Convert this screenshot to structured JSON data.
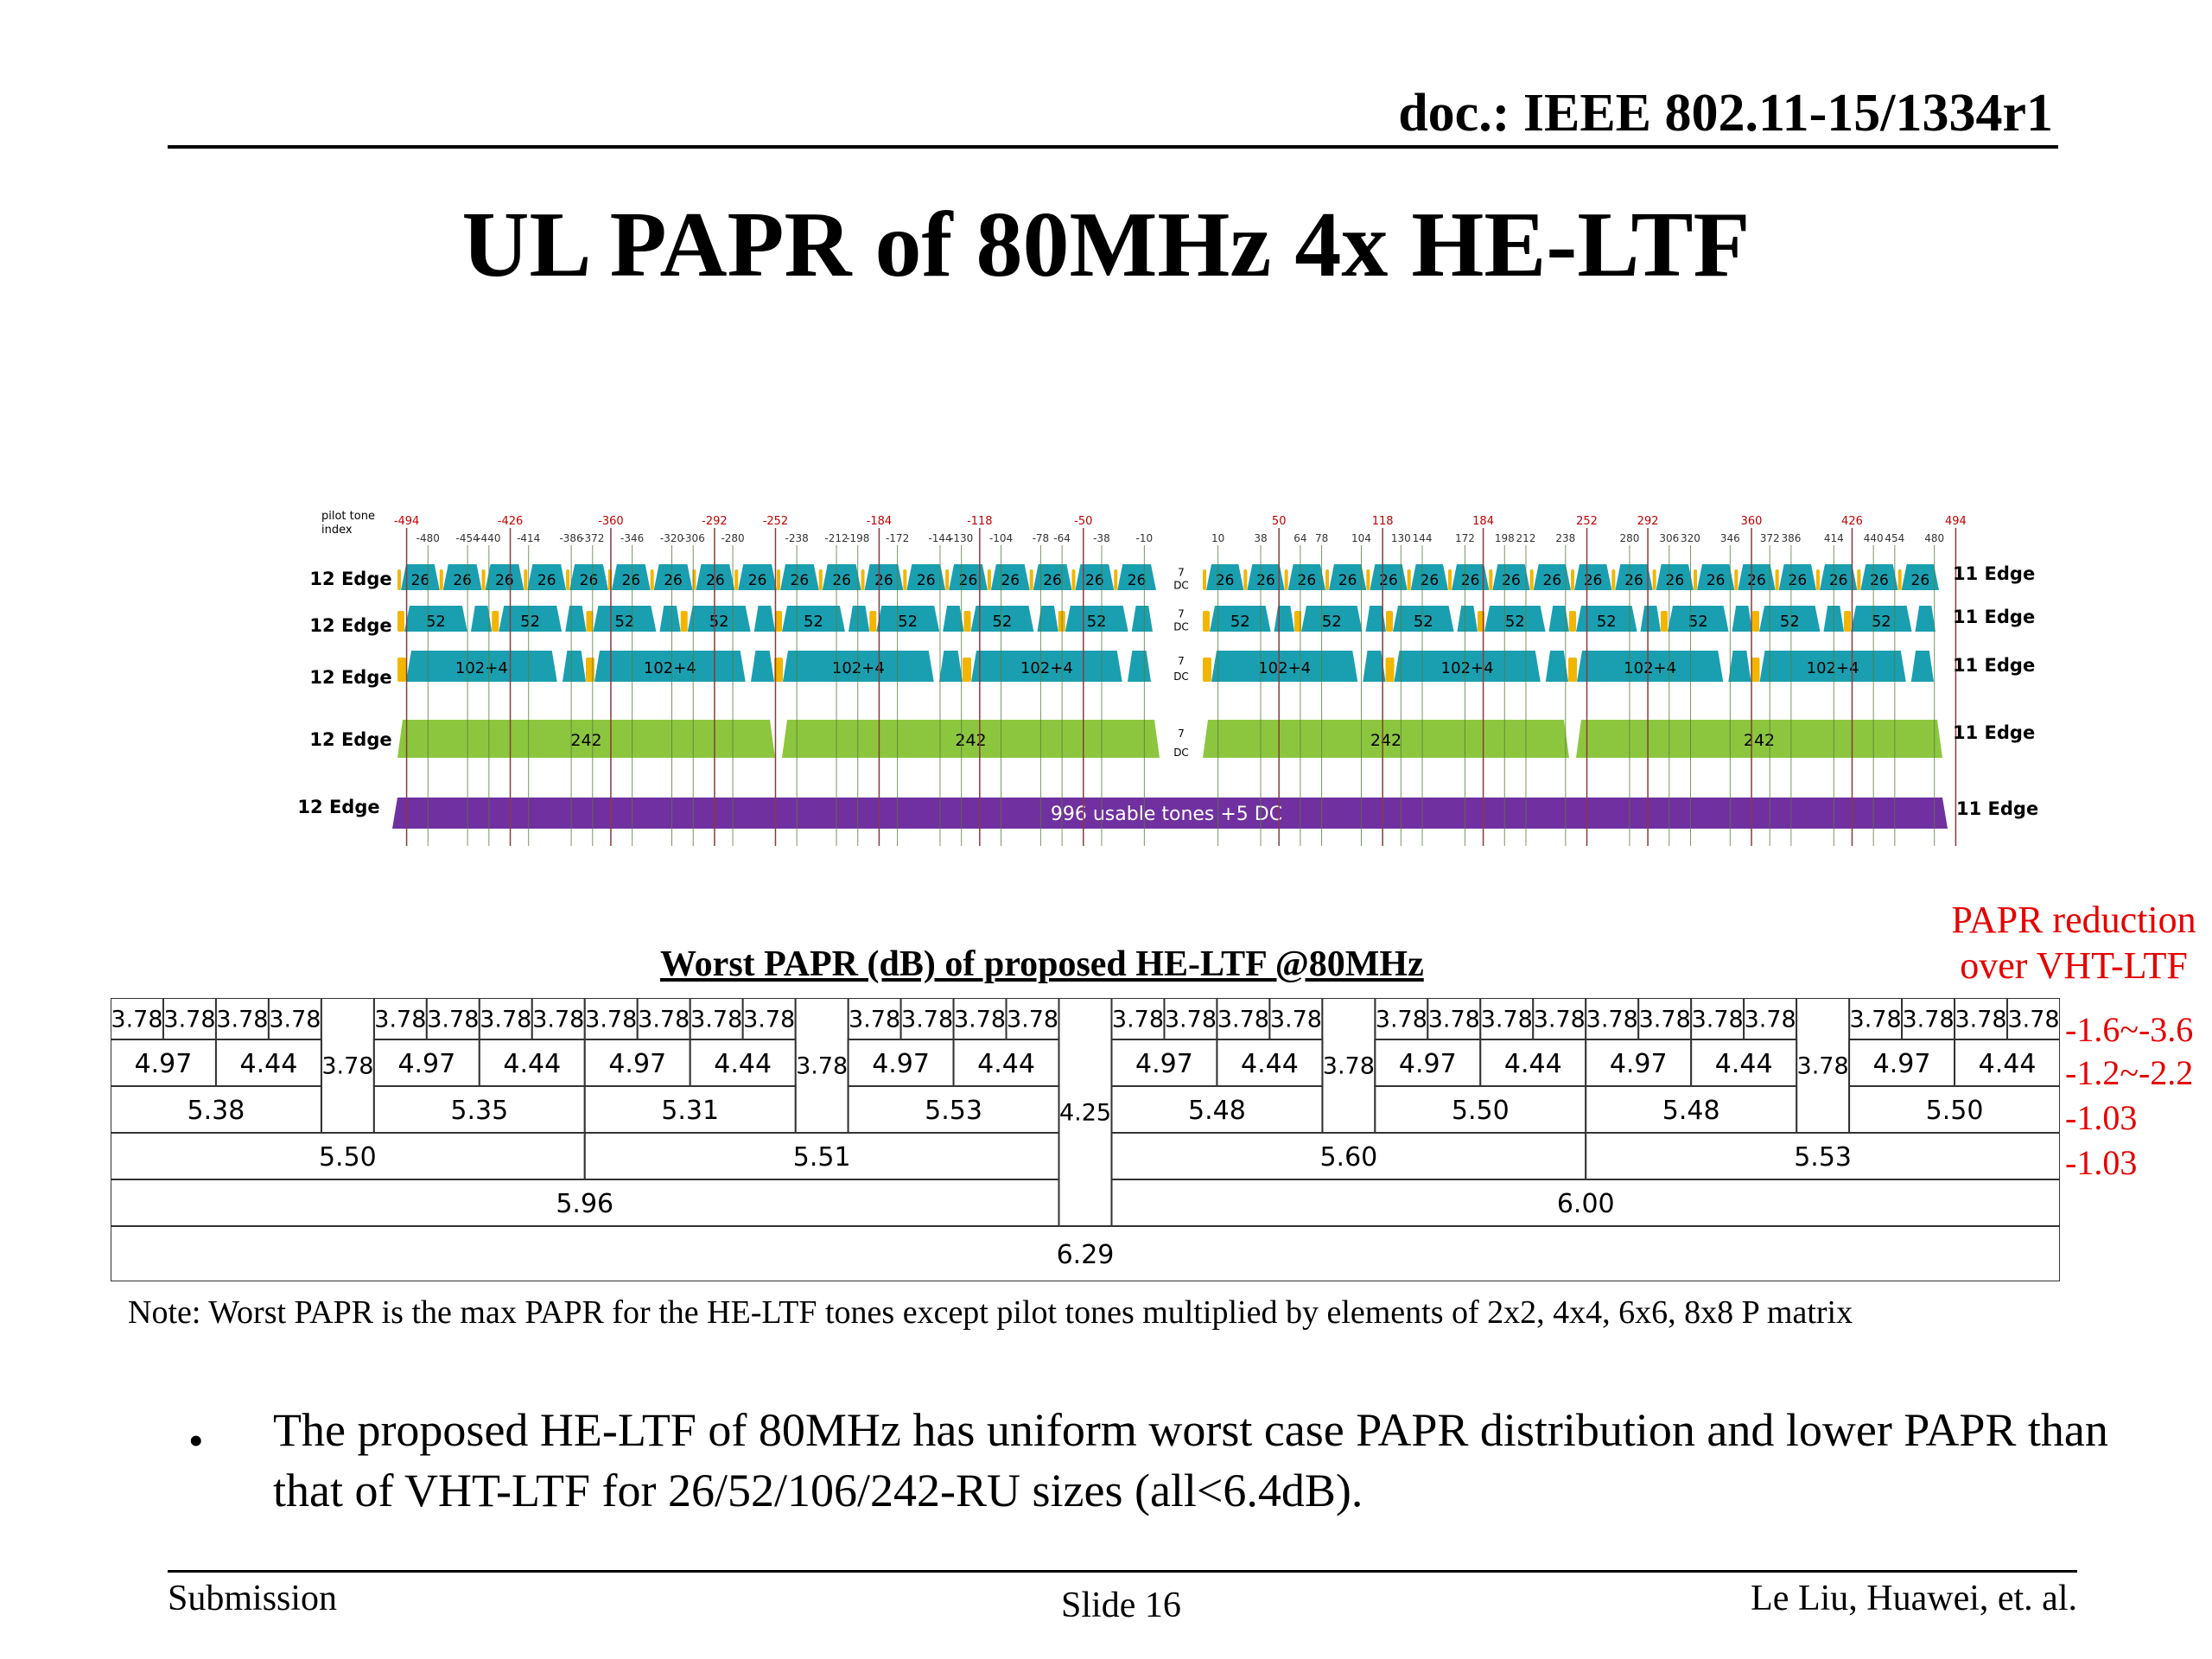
{
  "header": {
    "doc_id": "doc.: IEEE 802.11-15/1334r1"
  },
  "title": "UL PAPR of 80MHz 4x HE-LTF",
  "tone_plan_figure": {
    "pilot_label": [
      "pilot tone",
      "index"
    ],
    "pilot_indices_top": [
      "-494",
      "-426",
      "-360",
      "-292",
      "-252",
      "-184",
      "-118",
      "-50",
      "50",
      "118",
      "184",
      "252",
      "292",
      "360",
      "426",
      "494"
    ],
    "pilot_indices_bottom": [
      "-480",
      "-454",
      "-440",
      "-414",
      "-386",
      "-372",
      "-346",
      "-320",
      "-306",
      "-280",
      "-238",
      "-212",
      "-198",
      "-172",
      "-144",
      "-130",
      "-104",
      "-78",
      "-64",
      "-38",
      "-10",
      "10",
      "38",
      "64",
      "78",
      "104",
      "130",
      "144",
      "172",
      "198",
      "212",
      "238",
      "280",
      "306",
      "320",
      "346",
      "372",
      "386",
      "414",
      "440",
      "454",
      "480"
    ],
    "row_left_labels": [
      "12 Edge",
      "12 Edge",
      "12 Edge",
      "12 Edge",
      "12 Edge"
    ],
    "row_right_labels": [
      "11 Edge",
      "11 Edge",
      "11 Edge",
      "11 Edge",
      "11 Edge"
    ],
    "ru26_label": "26",
    "ru52_label": "52",
    "ru106_label": "102+4",
    "ru242_label": "242",
    "ru996_label": "996 usable tones +5 DC",
    "dc_labels": [
      "7",
      "DC"
    ],
    "colors": {
      "ru_teal": "#1a9fb0",
      "gap_yellow": "#f2b600",
      "ru_green": "#8cc63f",
      "ru_purple": "#7030a0",
      "pilot_red": "#c00000"
    }
  },
  "papr_note_red": {
    "line1": "PAPR reduction",
    "line2": "over VHT-LTF"
  },
  "table_caption": "Worst PAPR (dB) of proposed HE-LTF @80MHz",
  "papr_table": {
    "ru26_value": "3.78",
    "ru52_values": [
      "4.97",
      "4.44"
    ],
    "ru106_values": [
      "5.38",
      "5.35",
      "5.31",
      "5.53",
      "5.48",
      "5.50",
      "5.48",
      "5.50"
    ],
    "ru242_values": [
      "5.50",
      "5.51",
      "5.60",
      "5.53"
    ],
    "ru484_values": [
      "5.96",
      "6.00"
    ],
    "center26_value": "4.25",
    "ru996_value": "6.29"
  },
  "papr_reduction": [
    "-1.6~-3.6",
    "-1.2~-2.2",
    "-1.03",
    "-1.03"
  ],
  "note": "Note: Worst PAPR is the max PAPR for the HE-LTF tones except pilot tones multiplied by elements of 2x2, 4x4, 6x6, 8x8 P matrix",
  "bullet": {
    "marker": "•",
    "text": "The proposed HE-LTF of 80MHz has uniform worst case PAPR distribution and lower PAPR than that of VHT-LTF for 26/52/106/242-RU sizes (all<6.4dB)."
  },
  "footer": {
    "left": "Submission",
    "center": "Slide 16",
    "right": "Le Liu, Huawei, et. al."
  }
}
